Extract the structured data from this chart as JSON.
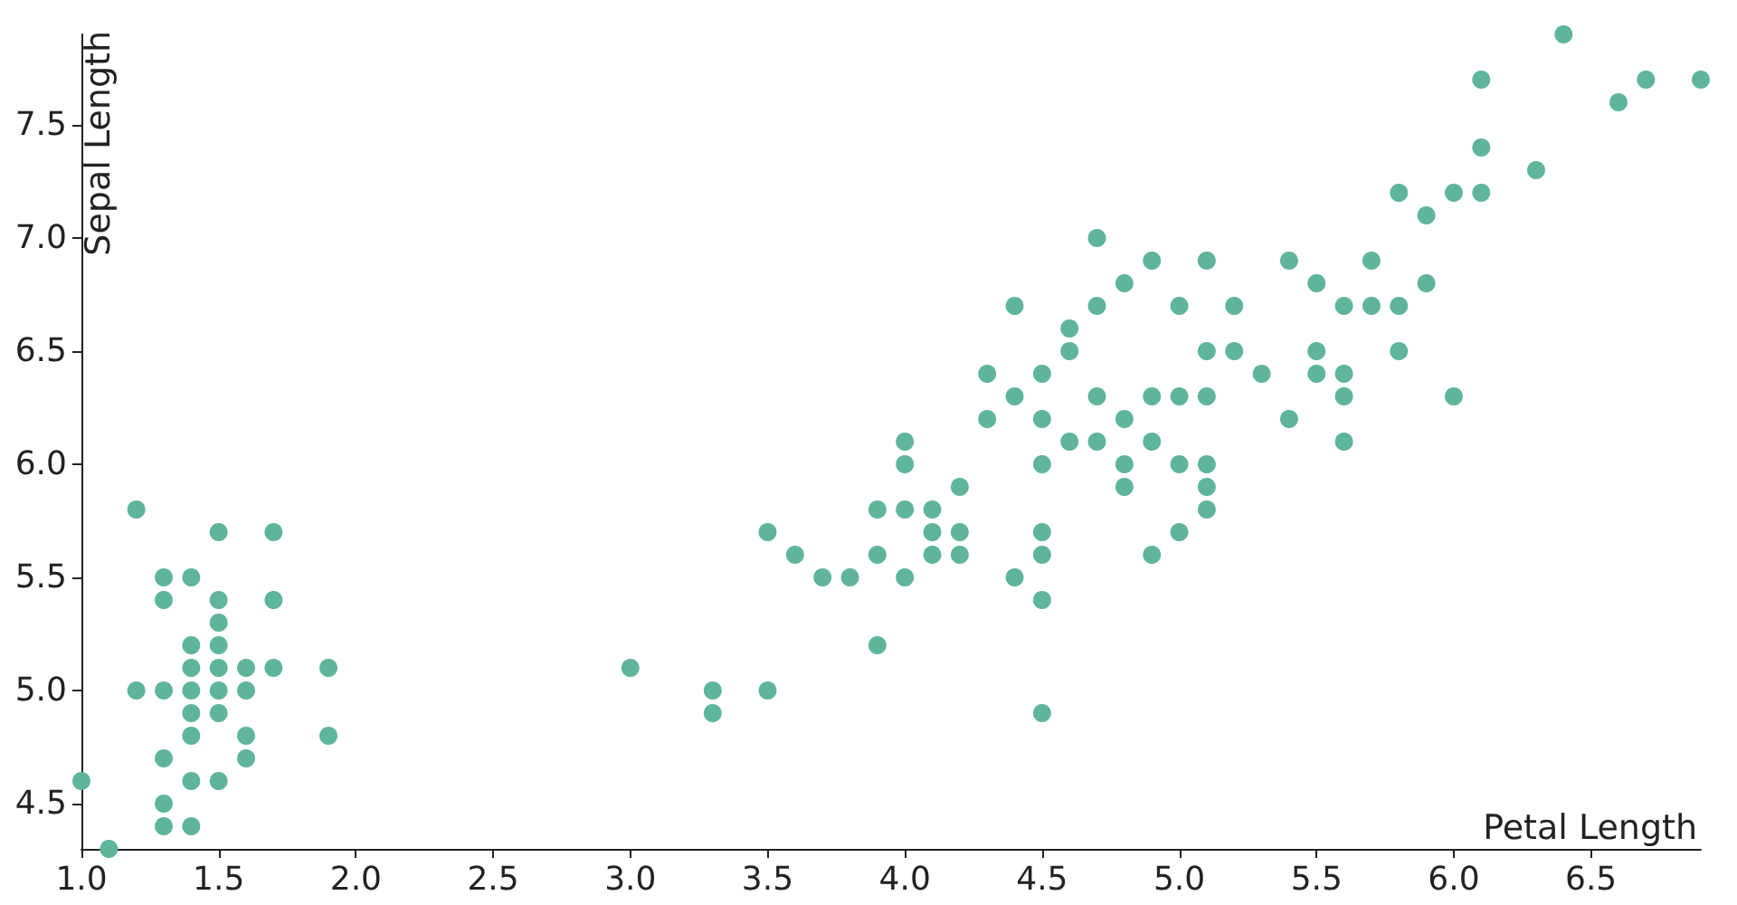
{
  "chart_data": {
    "type": "scatter",
    "xlabel": "Petal Length",
    "ylabel": "Sepal Length",
    "x": [
      1.0,
      1.1,
      1.2,
      1.2,
      1.3,
      1.3,
      1.3,
      1.3,
      1.3,
      1.3,
      1.4,
      1.4,
      1.4,
      1.4,
      1.4,
      1.4,
      1.4,
      1.4,
      1.5,
      1.5,
      1.5,
      1.5,
      1.5,
      1.5,
      1.5,
      1.5,
      1.6,
      1.6,
      1.6,
      1.6,
      1.7,
      1.7,
      1.7,
      1.9,
      1.9,
      3.0,
      3.3,
      3.3,
      3.5,
      3.5,
      3.6,
      3.7,
      3.8,
      3.9,
      3.9,
      3.9,
      4.0,
      4.0,
      4.0,
      4.0,
      4.1,
      4.1,
      4.1,
      4.2,
      4.2,
      4.2,
      4.3,
      4.3,
      4.4,
      4.4,
      4.4,
      4.5,
      4.5,
      4.5,
      4.5,
      4.5,
      4.5,
      4.5,
      4.6,
      4.6,
      4.6,
      4.7,
      4.7,
      4.7,
      4.7,
      4.8,
      4.8,
      4.8,
      4.8,
      4.9,
      4.9,
      4.9,
      4.9,
      5.0,
      5.0,
      5.0,
      5.0,
      5.1,
      5.1,
      5.1,
      5.1,
      5.1,
      5.1,
      5.2,
      5.2,
      5.3,
      5.4,
      5.4,
      5.5,
      5.5,
      5.5,
      5.6,
      5.6,
      5.6,
      5.6,
      5.7,
      5.7,
      5.8,
      5.8,
      5.8,
      5.9,
      5.9,
      6.0,
      6.0,
      6.1,
      6.1,
      6.1,
      6.3,
      6.4,
      6.6,
      6.7,
      6.9
    ],
    "values": [
      4.6,
      4.3,
      5.8,
      5.0,
      4.7,
      5.4,
      5.5,
      4.4,
      5.0,
      4.5,
      5.1,
      4.9,
      5.0,
      4.6,
      4.4,
      4.8,
      5.2,
      5.5,
      4.6,
      5.0,
      4.9,
      5.4,
      5.7,
      5.1,
      5.2,
      5.3,
      4.8,
      5.0,
      4.7,
      5.1,
      5.4,
      5.7,
      5.1,
      4.8,
      5.1,
      5.1,
      4.9,
      5.0,
      5.0,
      5.7,
      5.6,
      5.5,
      5.5,
      5.2,
      5.6,
      5.8,
      5.5,
      6.0,
      6.1,
      5.8,
      5.8,
      5.6,
      5.7,
      5.9,
      5.6,
      5.7,
      6.4,
      6.2,
      6.7,
      6.3,
      5.5,
      6.4,
      5.7,
      5.6,
      6.2,
      6.0,
      5.4,
      4.9,
      6.5,
      6.6,
      6.1,
      7.0,
      6.3,
      6.1,
      6.7,
      5.9,
      6.8,
      6.2,
      6.0,
      6.9,
      6.3,
      6.1,
      5.6,
      6.7,
      5.7,
      6.0,
      6.3,
      6.0,
      5.8,
      6.5,
      6.3,
      6.9,
      5.9,
      6.7,
      6.5,
      6.4,
      6.9,
      6.2,
      6.8,
      6.5,
      6.4,
      6.3,
      6.4,
      6.1,
      6.7,
      6.9,
      6.7,
      6.5,
      6.7,
      7.2,
      7.1,
      6.8,
      6.3,
      7.2,
      7.2,
      7.4,
      7.7,
      7.3,
      7.9,
      7.6,
      7.7,
      7.7
    ],
    "color": "#5fb49c",
    "marker": "circle",
    "xlim": [
      1.0,
      6.9
    ],
    "ylim": [
      4.3,
      7.9
    ],
    "xticks": [
      {
        "value": 1.0,
        "label": "1.0"
      },
      {
        "value": 1.5,
        "label": "1.5"
      },
      {
        "value": 2.0,
        "label": "2.0"
      },
      {
        "value": 2.5,
        "label": "2.5"
      },
      {
        "value": 3.0,
        "label": "3.0"
      },
      {
        "value": 3.5,
        "label": "3.5"
      },
      {
        "value": 4.0,
        "label": "4.0"
      },
      {
        "value": 4.5,
        "label": "4.5"
      },
      {
        "value": 5.0,
        "label": "5.0"
      },
      {
        "value": 5.5,
        "label": "5.5"
      },
      {
        "value": 6.0,
        "label": "6.0"
      },
      {
        "value": 6.5,
        "label": "6.5"
      }
    ],
    "yticks": [
      {
        "value": 4.5,
        "label": "4.5"
      },
      {
        "value": 5.0,
        "label": "5.0"
      },
      {
        "value": 5.5,
        "label": "5.5"
      },
      {
        "value": 6.0,
        "label": "6.0"
      },
      {
        "value": 6.5,
        "label": "6.5"
      },
      {
        "value": 7.0,
        "label": "7.0"
      },
      {
        "value": 7.5,
        "label": "7.5"
      }
    ]
  }
}
